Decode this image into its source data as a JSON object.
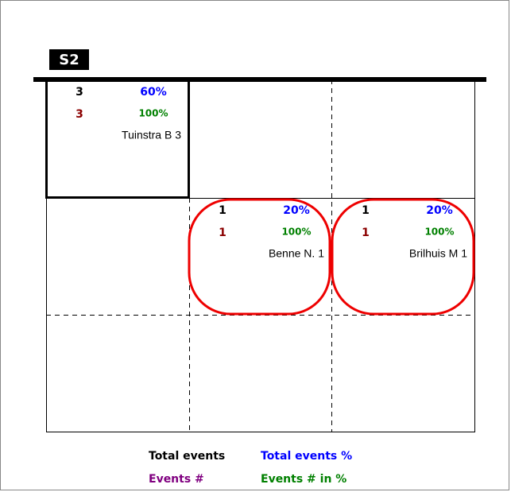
{
  "title": "S2",
  "cells": [
    {
      "total": 3,
      "total_pct": "60%",
      "events": 3,
      "events_pct": "100%",
      "name": "Tuinstra B 3"
    },
    {
      "total": 1,
      "total_pct": "20%",
      "events": 1,
      "events_pct": "100%",
      "name": "Benne N. 1"
    },
    {
      "total": 1,
      "total_pct": "20%",
      "events": 1,
      "events_pct": "100%",
      "name": "Brilhuis M 1"
    }
  ],
  "legend": [
    "Total events",
    "Total events %",
    "Events #",
    "Events # in %"
  ]
}
